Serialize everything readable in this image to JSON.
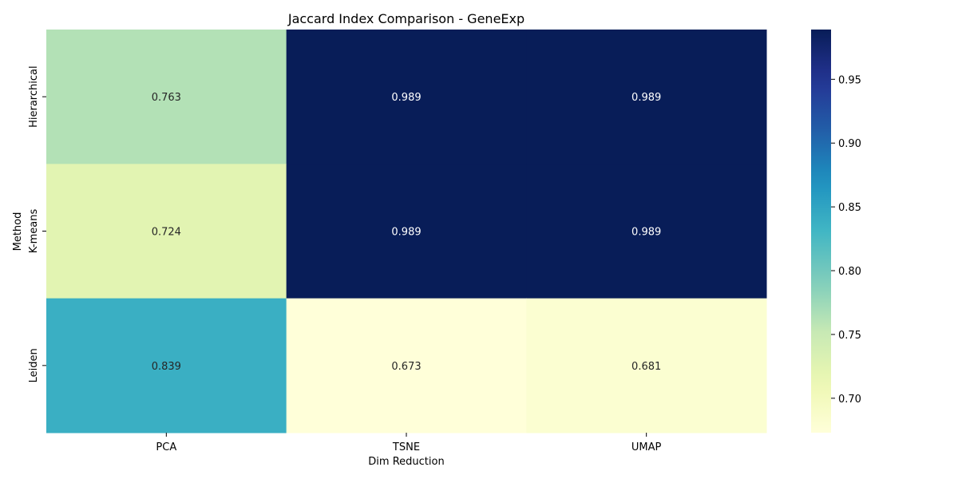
{
  "chart_data": {
    "type": "heatmap",
    "title": "Jaccard Index Comparison - GeneExp",
    "xlabel": "Dim Reduction",
    "ylabel": "Method",
    "x_categories": [
      "PCA",
      "TSNE",
      "UMAP"
    ],
    "y_categories": [
      "Hierarchical",
      "K-means",
      "Leiden"
    ],
    "values": [
      [
        0.763,
        0.989,
        0.989
      ],
      [
        0.724,
        0.989,
        0.989
      ],
      [
        0.839,
        0.673,
        0.681
      ]
    ],
    "value_labels": [
      [
        "0.763",
        "0.989",
        "0.989"
      ],
      [
        "0.724",
        "0.989",
        "0.989"
      ],
      [
        "0.839",
        "0.673",
        "0.681"
      ]
    ],
    "colormap": "YlGnBu",
    "vmin": 0.673,
    "vmax": 0.989,
    "colorbar": {
      "ticks": [
        0.7,
        0.75,
        0.8,
        0.85,
        0.9,
        0.95
      ],
      "tick_labels": [
        "0.70",
        "0.75",
        "0.80",
        "0.85",
        "0.90",
        "0.95"
      ],
      "placement": "right"
    },
    "grid": false
  }
}
